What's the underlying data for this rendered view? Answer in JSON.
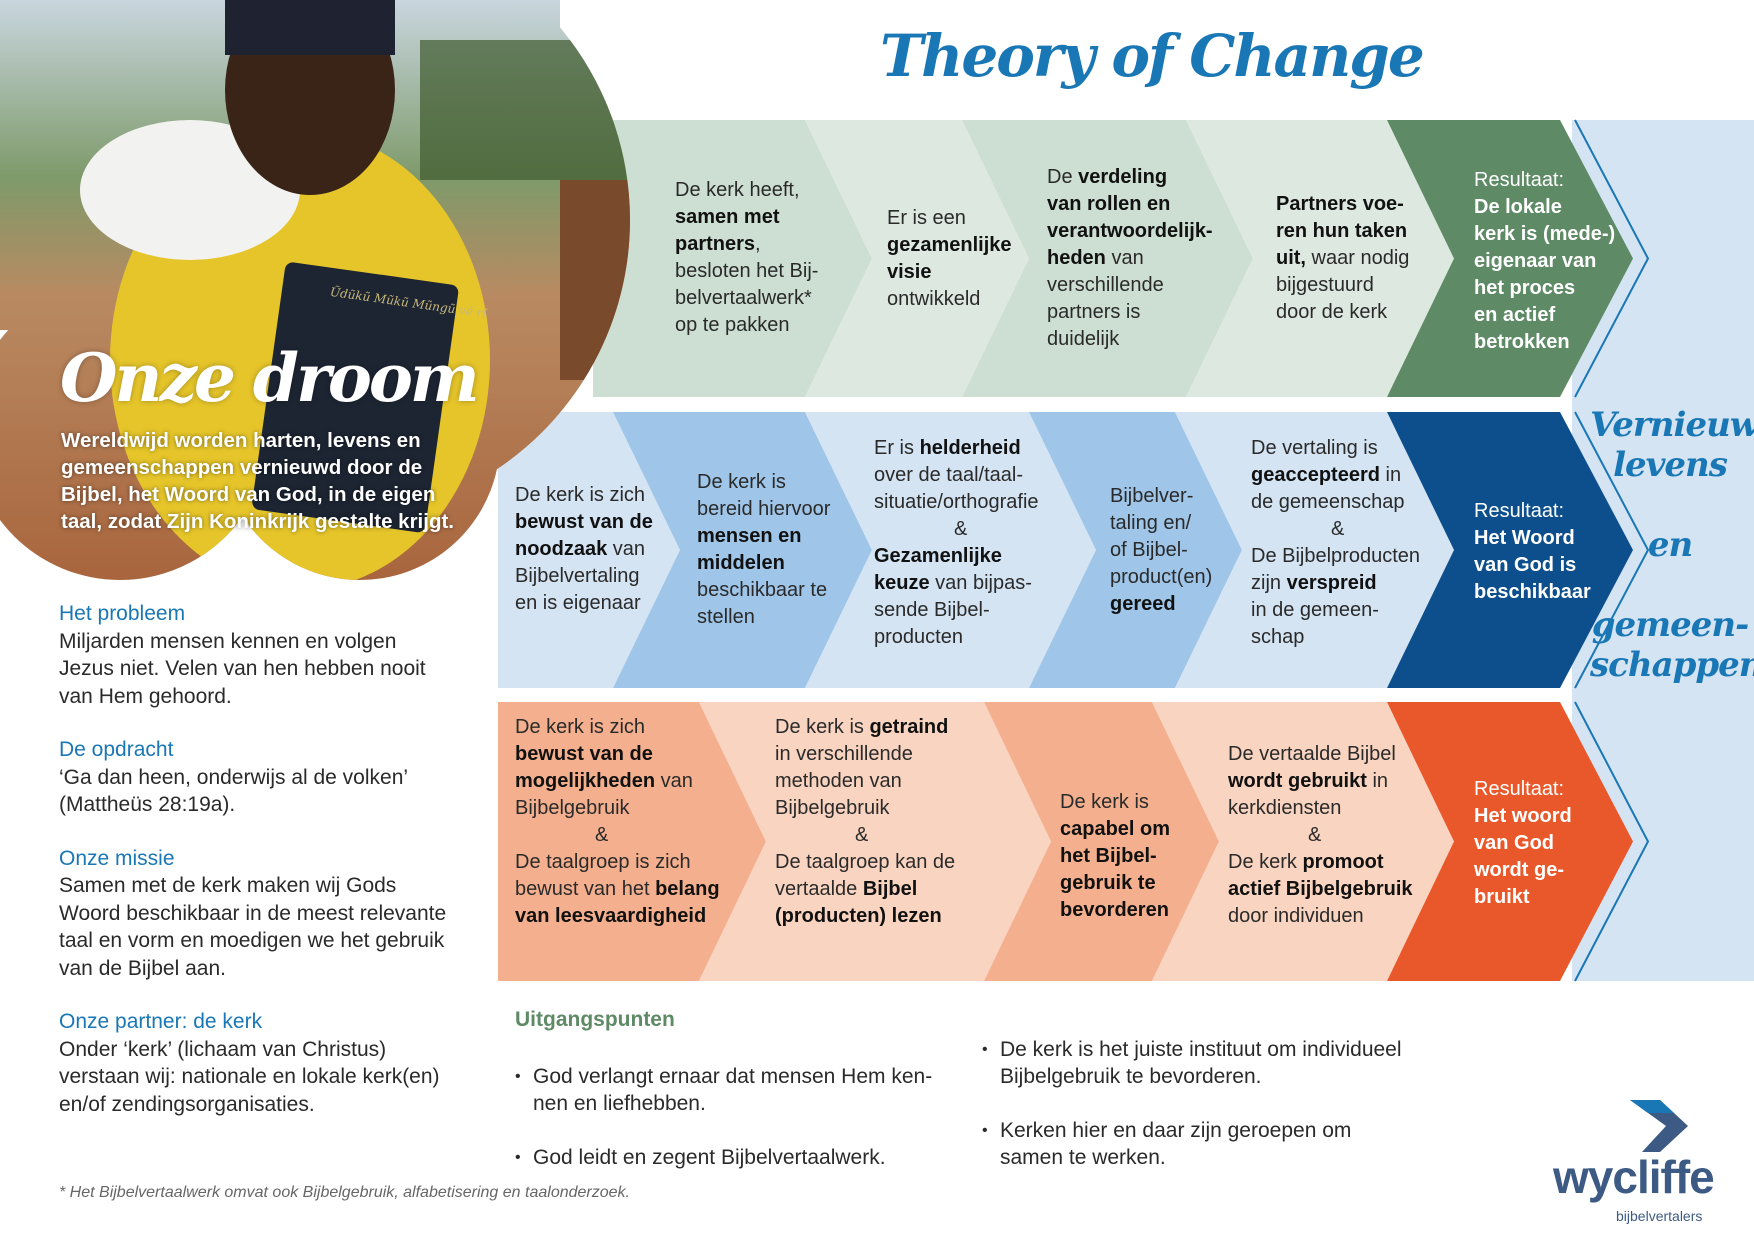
{
  "title": "Theory of Change",
  "photo": {
    "heading": "Onze droom",
    "caption": "Wereldwijd worden harten, levens en gemeenschappen vernieuwd door de Bijbel, het Woord van God, in de eigen taal, zodat Zijn Koninkrijk gestalte krijgt.",
    "book_text": "Ũdũkũ Mũkũ Mũngũ vé rĩ"
  },
  "left_sections": [
    {
      "heading": "Het probleem",
      "body": "Miljarden mensen kennen en volgen Jezus niet. Velen van hen hebben nooit van Hem gehoord."
    },
    {
      "heading": "De opdracht",
      "body": "‘Ga dan heen, onderwijs al de volken’ (Mattheüs 28:19a)."
    },
    {
      "heading": "Onze missie",
      "body": "Samen met de kerk maken wij Gods Woord beschikbaar in de meest relevante taal en vorm en moedigen we het gebruik van de Bijbel aan."
    },
    {
      "heading": "Onze partner: de kerk",
      "body": "Onder ‘kerk’ (lichaam van Christus) verstaan wij: nationale en lokale kerk(en) en/of zendingsorganisaties."
    }
  ],
  "colors": {
    "row1_light": "#dde8e0",
    "row1_mid": "#cddfd2",
    "row1_result": "#5e8a66",
    "row2_light": "#d4e4f3",
    "row2_mid": "#9fc5e8",
    "row2_result": "#0d4f8c",
    "row3_light": "#f9d4c0",
    "row3_mid": "#f4b08e",
    "row3_result": "#e8582a",
    "accent_blue": "#1a77b5",
    "side_bg": "#d4e4f3"
  },
  "rows": [
    {
      "steps": [
        [
          [
            [
              "De kerk heeft,",
              0
            ]
          ],
          [
            [
              "samen met",
              1
            ]
          ],
          [
            [
              "partners",
              1
            ],
            [
              ",",
              0
            ]
          ],
          [
            [
              "besloten het Bij-",
              0
            ]
          ],
          [
            [
              "belvertaalwerk*",
              0
            ]
          ],
          [
            [
              "op te pakken",
              0
            ]
          ]
        ],
        [
          [
            [
              "Er is een",
              0
            ]
          ],
          [
            [
              "gezamenlijke",
              1
            ]
          ],
          [
            [
              "visie",
              1
            ]
          ],
          [
            [
              "ontwikkeld",
              0
            ]
          ]
        ],
        [
          [
            [
              "De ",
              0
            ],
            [
              "verdeling",
              1
            ]
          ],
          [
            [
              "van rollen en",
              1
            ]
          ],
          [
            [
              "verantwoordelijk-",
              1
            ]
          ],
          [
            [
              "heden",
              1
            ],
            [
              " van",
              0
            ]
          ],
          [
            [
              "verschillende",
              0
            ]
          ],
          [
            [
              "partners is",
              0
            ]
          ],
          [
            [
              "duidelijk",
              0
            ]
          ]
        ],
        [
          [
            [
              "Partners voe-",
              1
            ]
          ],
          [
            [
              "ren hun taken",
              1
            ]
          ],
          [
            [
              "uit,",
              1
            ],
            [
              " waar nodig",
              0
            ]
          ],
          [
            [
              "bijgestuurd",
              0
            ]
          ],
          [
            [
              "door de kerk",
              0
            ]
          ]
        ]
      ],
      "result": [
        [
          [
            "Resultaat:",
            0
          ]
        ],
        [
          [
            "De lokale",
            1
          ]
        ],
        [
          [
            "kerk is (mede-)",
            1
          ]
        ],
        [
          [
            "eigenaar van",
            1
          ]
        ],
        [
          [
            "het proces",
            1
          ]
        ],
        [
          [
            "en actief",
            1
          ]
        ],
        [
          [
            "betrokken",
            1
          ]
        ]
      ]
    },
    {
      "steps": [
        [
          [
            [
              "De kerk is zich",
              0
            ]
          ],
          [
            [
              "bewust van de",
              1
            ]
          ],
          [
            [
              "noodzaak",
              1
            ],
            [
              " van",
              0
            ]
          ],
          [
            [
              "Bijbelvertaling",
              0
            ]
          ],
          [
            [
              "en is eigenaar",
              0
            ]
          ]
        ],
        [
          [
            [
              "De kerk is",
              0
            ]
          ],
          [
            [
              "bereid hiervoor",
              0
            ]
          ],
          [
            [
              "mensen en",
              1
            ]
          ],
          [
            [
              "middelen",
              1
            ]
          ],
          [
            [
              "beschikbaar te",
              0
            ]
          ],
          [
            [
              "stellen",
              0
            ]
          ]
        ],
        [
          [
            [
              "Er is ",
              0
            ],
            [
              "helderheid",
              1
            ]
          ],
          [
            [
              "over de taal/taal-",
              0
            ]
          ],
          [
            [
              "situatie/orthografie",
              0
            ]
          ],
          [
            [
              "&",
              0
            ]
          ],
          [
            [
              "Gezamenlijke",
              1
            ]
          ],
          [
            [
              "keuze",
              1
            ],
            [
              " van bijpas-",
              0
            ]
          ],
          [
            [
              "sende Bijbel-",
              0
            ]
          ],
          [
            [
              "producten",
              0
            ]
          ]
        ],
        [
          [
            [
              "Bijbelver-",
              0
            ]
          ],
          [
            [
              "taling en/",
              0
            ]
          ],
          [
            [
              "of Bijbel-",
              0
            ]
          ],
          [
            [
              "product(en)",
              0
            ]
          ],
          [
            [
              "gereed",
              1
            ]
          ]
        ],
        [
          [
            [
              "De vertaling is",
              0
            ]
          ],
          [
            [
              "geaccepteerd",
              1
            ],
            [
              " in",
              0
            ]
          ],
          [
            [
              "de gemeenschap",
              0
            ]
          ],
          [
            [
              "&",
              0
            ]
          ],
          [
            [
              "De Bijbelproducten",
              0
            ]
          ],
          [
            [
              "zijn ",
              0
            ],
            [
              "verspreid",
              1
            ]
          ],
          [
            [
              "in de gemeen-",
              0
            ]
          ],
          [
            [
              "schap",
              0
            ]
          ]
        ]
      ],
      "result": [
        [
          [
            "Resultaat:",
            0
          ]
        ],
        [
          [
            "Het Woord",
            1
          ]
        ],
        [
          [
            "van God is",
            1
          ]
        ],
        [
          [
            "beschikbaar",
            1
          ]
        ]
      ]
    },
    {
      "steps": [
        [
          [
            [
              "De kerk is zich",
              0
            ]
          ],
          [
            [
              "bewust van de",
              1
            ]
          ],
          [
            [
              "mogelijkheden",
              1
            ],
            [
              " van",
              0
            ]
          ],
          [
            [
              "Bijbelgebruik",
              0
            ]
          ],
          [
            [
              "&",
              0
            ]
          ],
          [
            [
              "De taalgroep is zich",
              0
            ]
          ],
          [
            [
              "bewust van het ",
              0
            ],
            [
              "belang",
              1
            ]
          ],
          [
            [
              "van leesvaardigheid",
              1
            ]
          ]
        ],
        [
          [
            [
              "De kerk is ",
              0
            ],
            [
              "getraind",
              1
            ]
          ],
          [
            [
              "in verschillende",
              0
            ]
          ],
          [
            [
              "methoden van",
              0
            ]
          ],
          [
            [
              "Bijbelgebruik",
              0
            ]
          ],
          [
            [
              "&",
              0
            ]
          ],
          [
            [
              "De taalgroep kan de",
              0
            ]
          ],
          [
            [
              "vertaalde ",
              0
            ],
            [
              "Bijbel",
              1
            ]
          ],
          [
            [
              "(producten) lezen",
              1
            ]
          ]
        ],
        [
          [
            [
              "De kerk is",
              0
            ]
          ],
          [
            [
              "capabel om",
              1
            ]
          ],
          [
            [
              "het Bijbel-",
              1
            ]
          ],
          [
            [
              "gebruik te",
              1
            ]
          ],
          [
            [
              "bevorderen",
              1
            ]
          ]
        ],
        [
          [
            [
              "De vertaalde Bijbel",
              0
            ]
          ],
          [
            [
              "wordt gebruikt",
              1
            ],
            [
              " in",
              0
            ]
          ],
          [
            [
              "kerkdiensten",
              0
            ]
          ],
          [
            [
              "&",
              0
            ]
          ],
          [
            [
              "De kerk ",
              0
            ],
            [
              "promoot",
              1
            ]
          ],
          [
            [
              "actief Bijbelgebruik",
              1
            ]
          ],
          [
            [
              "door individuen",
              0
            ]
          ]
        ]
      ],
      "result": [
        [
          [
            "Resultaat:",
            0
          ]
        ],
        [
          [
            "Het woord",
            1
          ]
        ],
        [
          [
            "van God",
            1
          ]
        ],
        [
          [
            "wordt ge-",
            1
          ]
        ],
        [
          [
            "bruikt",
            1
          ]
        ]
      ]
    }
  ],
  "side_text": [
    "Vernieuwde",
    "levens",
    "en",
    "gemeen-",
    "schappen!"
  ],
  "principles": {
    "heading": "Uitgangspunten",
    "col1": [
      "God verlangt ernaar dat mensen Hem ken-\nnen en liefhebben.",
      "God leidt en zegent Bijbelvertaalwerk."
    ],
    "col2": [
      "De kerk is het juiste instituut om individueel\nBijbelgebruik te bevorderen.",
      "Kerken hier en daar zijn geroepen om\nsamen te werken."
    ]
  },
  "footnote": "* Het Bijbelvertaalwerk omvat ook Bijbelgebruik, alfabetisering en taalonderzoek.",
  "logo": {
    "name": "wycliffe",
    "sub": "bijbelvertalers"
  }
}
